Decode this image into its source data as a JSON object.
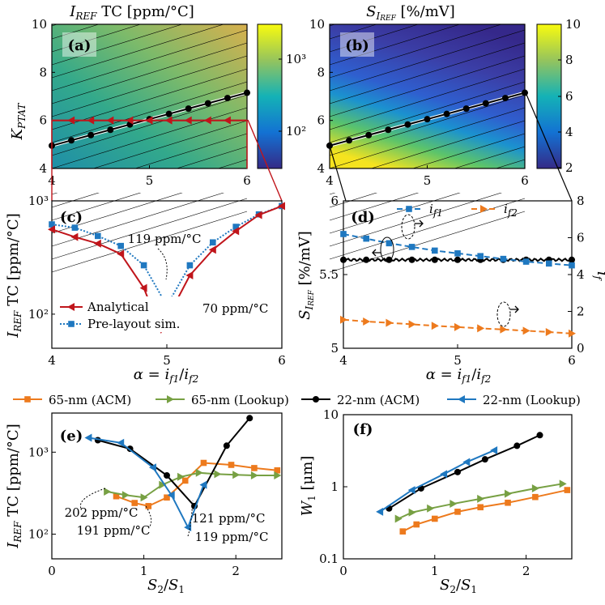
{
  "colors": {
    "red": "#c0151b",
    "blue": "#1f78c0",
    "orange": "#ed7a1d",
    "green": "#77a043",
    "black": "#000000"
  },
  "chart_data": [
    {
      "type": "heatmap",
      "panel": "(a)",
      "title": "I_REF TC [ppm/°C]",
      "title_main": "I",
      "title_sub": "REF",
      "title_rest": " TC [ppm/°C]",
      "xlabel": "",
      "ylabel": "K_PTAT",
      "ylabel_main": "K",
      "ylabel_sub": "PTAT",
      "xlim": [
        4,
        6
      ],
      "ylim": [
        4,
        10
      ],
      "xticks": [
        4,
        5,
        6
      ],
      "yticks": [
        4,
        6,
        8,
        10
      ],
      "colorbar": {
        "scale": "log",
        "ticks": [
          "10²",
          "10³"
        ]
      },
      "optimal_line": {
        "x": [
          4,
          4.2,
          4.4,
          4.6,
          4.8,
          5,
          5.2,
          5.4,
          5.6,
          5.8,
          6
        ],
        "y": [
          4.95,
          5.17,
          5.39,
          5.61,
          5.83,
          6.05,
          6.27,
          6.49,
          6.71,
          6.93,
          7.15
        ]
      },
      "highlight_line": {
        "y": 6,
        "x_markers": [
          4.2,
          4.4,
          4.6,
          4.8,
          5,
          5.2,
          5.4,
          5.6,
          5.8
        ]
      }
    },
    {
      "type": "heatmap",
      "panel": "(b)",
      "title": "S_IREF [%/mV]",
      "title_main": "S",
      "title_sub": "I",
      "title_subsub": "REF",
      "title_rest": " [%/mV]",
      "xlim": [
        4,
        6
      ],
      "ylim": [
        4,
        10
      ],
      "xticks": [
        4,
        5,
        6
      ],
      "yticks": [
        4,
        6,
        8,
        10
      ],
      "colorbar": {
        "scale": "linear",
        "ticks": [
          "2",
          "4",
          "6",
          "8",
          "10"
        ]
      },
      "optimal_line": {
        "x": [
          4,
          4.2,
          4.4,
          4.6,
          4.8,
          5,
          5.2,
          5.4,
          5.6,
          5.8,
          6
        ],
        "y": [
          4.95,
          5.17,
          5.39,
          5.61,
          5.83,
          6.05,
          6.27,
          6.49,
          6.71,
          6.93,
          7.15
        ]
      }
    },
    {
      "type": "line",
      "panel": "(c)",
      "xlabel": "α = i_f1/i_f2",
      "ylabel": "I_REF TC [ppm/°C]",
      "ylabel_main": "I",
      "ylabel_sub": "REF",
      "ylabel_rest": " TC [ppm/°C]",
      "xlim": [
        4,
        6
      ],
      "yscale": "log",
      "ylim": [
        50,
        1000
      ],
      "xticks": [
        "4",
        "5",
        "6"
      ],
      "yticks": [
        "10²",
        "10³"
      ],
      "series": [
        {
          "name": "Analytical",
          "x": [
            4,
            4.2,
            4.4,
            4.6,
            4.8,
            4.95,
            5,
            5.2,
            5.4,
            5.6,
            5.8,
            6
          ],
          "y": [
            560,
            480,
            420,
            340,
            170,
            70,
            90,
            220,
            370,
            540,
            750,
            900
          ]
        },
        {
          "name": "Pre-layout sim.",
          "x": [
            4,
            4.2,
            4.4,
            4.6,
            4.8,
            5,
            5.2,
            5.4,
            5.6,
            5.8,
            6
          ],
          "y": [
            620,
            580,
            490,
            400,
            270,
            119,
            270,
            430,
            590,
            760,
            900
          ]
        }
      ],
      "annotations": [
        "119 ppm/°C",
        "70 ppm/°C"
      ]
    },
    {
      "type": "line",
      "panel": "(d)",
      "xlabel": "α = i_f1/i_f2",
      "ylabel": "S_IREF [%/mV]",
      "ylabel_main": "S",
      "ylabel_sub": "I",
      "ylabel_subsub": "REF",
      "ylabel_rest": " [%/mV]",
      "y2label": "i_f",
      "xlim": [
        4,
        6
      ],
      "ylim": [
        5,
        6
      ],
      "y2lim": [
        0,
        8
      ],
      "xticks": [
        "4",
        "5",
        "6"
      ],
      "yticks": [
        "5",
        "5.5",
        "6"
      ],
      "y2ticks": [
        "0",
        "2",
        "4",
        "6",
        "8"
      ],
      "series": [
        {
          "name": "S_IREF",
          "axis": "left",
          "x": [
            4,
            4.2,
            4.4,
            4.6,
            4.8,
            5,
            5.2,
            5.4,
            5.6,
            5.8,
            6
          ],
          "y": [
            5.6,
            5.6,
            5.6,
            5.6,
            5.6,
            5.6,
            5.6,
            5.6,
            5.6,
            5.6,
            5.6
          ]
        },
        {
          "name": "i_f1",
          "legend_main": "i",
          "legend_sub": "f1",
          "axis": "right",
          "x": [
            4,
            4.2,
            4.4,
            4.6,
            4.8,
            5,
            5.2,
            5.4,
            5.6,
            5.8,
            6
          ],
          "y": [
            6.2,
            5.95,
            5.7,
            5.5,
            5.3,
            5.15,
            5.0,
            4.85,
            4.7,
            4.6,
            4.5
          ]
        },
        {
          "name": "i_f2",
          "legend_main": "i",
          "legend_sub": "f2",
          "axis": "right",
          "x": [
            4,
            4.2,
            4.4,
            4.6,
            4.8,
            5,
            5.2,
            5.4,
            5.6,
            5.8,
            6
          ],
          "y": [
            1.55,
            1.45,
            1.38,
            1.3,
            1.22,
            1.15,
            1.08,
            1.02,
            0.95,
            0.88,
            0.8
          ]
        }
      ]
    },
    {
      "type": "line",
      "panel": "(e)",
      "xlabel": "S_2/S_1",
      "ylabel": "I_REF TC [ppm/°C]",
      "ylabel_main": "I",
      "ylabel_sub": "REF",
      "ylabel_rest": " TC [ppm/°C]",
      "xlim": [
        0,
        2.5
      ],
      "yscale": "log",
      "ylim": [
        50,
        3000
      ],
      "xticks": [
        "0",
        "1",
        "2"
      ],
      "yticks": [
        "10²",
        "10³"
      ],
      "annotations": [
        "202 ppm/°C",
        "191 ppm/°C",
        "121 ppm/°C",
        "119 ppm/°C"
      ],
      "series": [
        {
          "name": "65-nm (ACM)",
          "x": [
            0.7,
            0.9,
            1.05,
            1.25,
            1.45,
            1.65,
            1.95,
            2.2,
            2.45
          ],
          "y": [
            290,
            240,
            220,
            280,
            450,
            740,
            700,
            640,
            600
          ]
        },
        {
          "name": "65-nm (Lookup)",
          "x": [
            0.6,
            0.8,
            1.0,
            1.2,
            1.4,
            1.6,
            1.8,
            2.0,
            2.2,
            2.45
          ],
          "y": [
            330,
            300,
            280,
            400,
            500,
            560,
            540,
            530,
            520,
            520
          ]
        },
        {
          "name": "22-nm (ACM)",
          "x": [
            0.5,
            0.85,
            1.25,
            1.55,
            1.9,
            2.15
          ],
          "y": [
            1400,
            1100,
            520,
            220,
            1200,
            2600
          ]
        },
        {
          "name": "22-nm (Lookup)",
          "x": [
            0.4,
            0.75,
            1.1,
            1.3,
            1.48,
            1.65
          ],
          "y": [
            1500,
            1300,
            650,
            300,
            121,
            400
          ]
        }
      ]
    },
    {
      "type": "line",
      "panel": "(f)",
      "xlabel": "S_2/S_1",
      "ylabel": "W_1 [μm]",
      "ylabel_main": "W",
      "ylabel_sub": "1",
      "ylabel_rest": " [μm]",
      "xlim": [
        0,
        2.5
      ],
      "yscale": "log",
      "ylim": [
        0.1,
        10
      ],
      "xticks": [
        "0",
        "1",
        "2"
      ],
      "yticks": [
        "0.1",
        "1",
        "10"
      ],
      "series": [
        {
          "name": "65-nm (ACM)",
          "x": [
            0.65,
            0.8,
            1.0,
            1.25,
            1.5,
            1.8,
            2.1,
            2.45
          ],
          "y": [
            0.24,
            0.3,
            0.36,
            0.45,
            0.52,
            0.6,
            0.72,
            0.9
          ]
        },
        {
          "name": "65-nm (Lookup)",
          "x": [
            0.6,
            0.75,
            0.95,
            1.2,
            1.5,
            1.8,
            2.1,
            2.4
          ],
          "y": [
            0.36,
            0.44,
            0.5,
            0.58,
            0.68,
            0.8,
            0.95,
            1.1
          ]
        },
        {
          "name": "22-nm (ACM)",
          "x": [
            0.5,
            0.85,
            1.25,
            1.55,
            1.9,
            2.15
          ],
          "y": [
            0.5,
            0.95,
            1.6,
            2.4,
            3.7,
            5.2
          ]
        },
        {
          "name": "22-nm (Lookup)",
          "x": [
            0.4,
            0.75,
            1.1,
            1.35,
            1.65
          ],
          "y": [
            0.45,
            0.9,
            1.5,
            2.2,
            3.2
          ]
        }
      ]
    }
  ],
  "legend": [
    "65-nm (ACM)",
    "65-nm (Lookup)",
    "22-nm (ACM)",
    "22-nm (Lookup)"
  ]
}
